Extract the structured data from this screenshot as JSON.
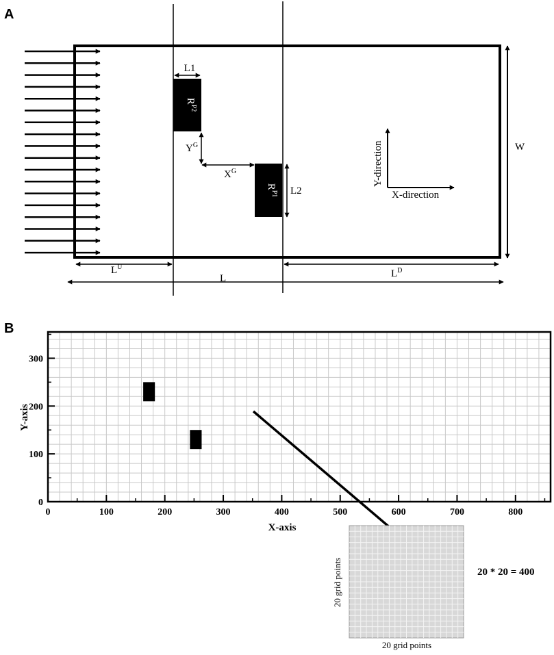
{
  "panel_a": {
    "label": "A",
    "rect_upper": "R",
    "rect_upper_sup": "P2",
    "rect_lower": "R",
    "rect_lower_sup": "P1",
    "l1": "L1",
    "l2": "L2",
    "yg": "Y",
    "yg_sup": "G",
    "xg": "X",
    "xg_sup": "G",
    "w": "W",
    "lu": "L",
    "lu_sup": "U",
    "l": "L",
    "ld": "L",
    "ld_sup": "D",
    "y_direction": "Y-direction",
    "x_direction": "X-direction"
  },
  "panel_b": {
    "label": "B",
    "chart_data": {
      "type": "grid",
      "xlabel": "X-axis",
      "ylabel": "Y-axis",
      "xlim": [
        0,
        860
      ],
      "ylim": [
        0,
        355
      ],
      "xticks": [
        "0",
        "100",
        "200",
        "300",
        "400",
        "500",
        "600",
        "700",
        "800"
      ],
      "yticks": [
        "0",
        "100",
        "200",
        "300"
      ],
      "grid": true,
      "rectangles": [
        {
          "x": [
            163,
            183
          ],
          "y": [
            210,
            250
          ]
        },
        {
          "x": [
            243,
            263
          ],
          "y": [
            110,
            150
          ]
        }
      ]
    },
    "inset_xlabel": "20 grid points",
    "inset_ylabel": "20 grid points",
    "inset_formula": "20 * 20 = 400"
  }
}
